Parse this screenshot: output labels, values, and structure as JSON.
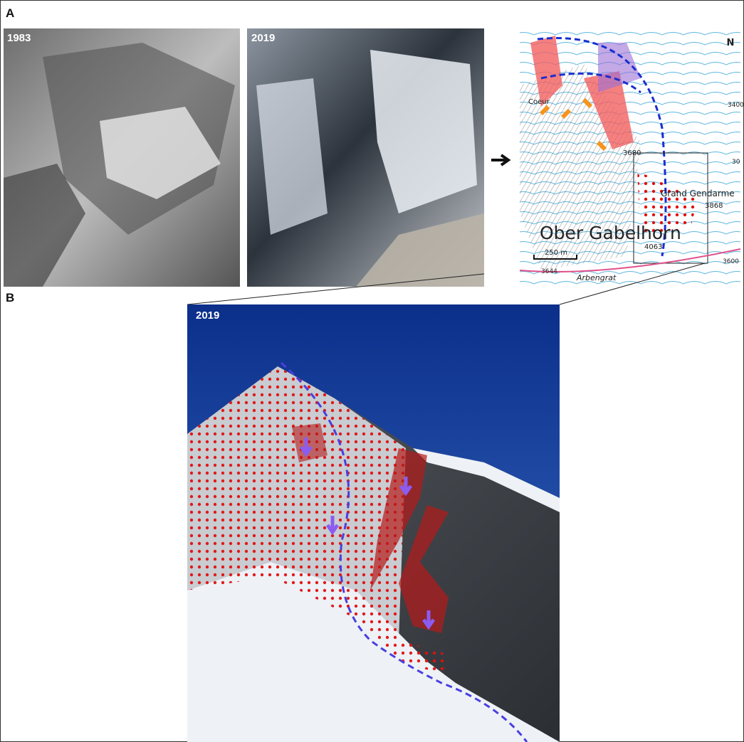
{
  "panel_a": {
    "label": "A",
    "photos": [
      {
        "year": "1983"
      },
      {
        "year": "2019"
      }
    ],
    "map": {
      "north": "N",
      "labels": [
        "Coeur",
        "3680",
        "Grand Gendarme",
        "3868",
        "Ober Gabelhorn",
        "250 m",
        "3644",
        "4063",
        "Arbengrat",
        "3400",
        "3600",
        "30"
      ]
    }
  },
  "panel_b": {
    "label": "B",
    "photo": {
      "year": "2019"
    }
  }
}
